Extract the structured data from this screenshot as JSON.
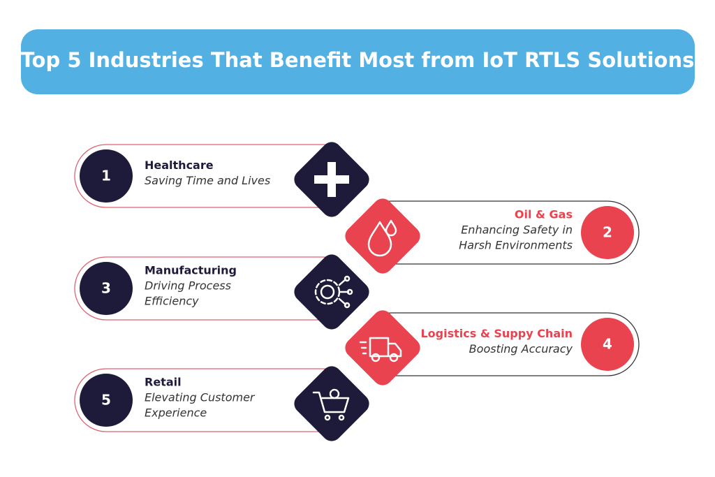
{
  "header": {
    "title": "Top 5 Industries That Benefit Most from IoT RTLS Solutions"
  },
  "items": [
    {
      "number": "1",
      "title": "Healthcare",
      "subtitle_lines": [
        "Saving Time and Lives"
      ]
    },
    {
      "number": "2",
      "title": "Oil & Gas",
      "subtitle_lines": [
        "Enhancing Safety in",
        "Harsh Environments"
      ]
    },
    {
      "number": "3",
      "title": "Manufacturing",
      "subtitle_lines": [
        "Driving Process",
        "Efficiency"
      ]
    },
    {
      "number": "4",
      "title": "Logistics & Suppy Chain",
      "subtitle_lines": [
        "Boosting Accuracy"
      ]
    },
    {
      "number": "5",
      "title": "Retail",
      "subtitle_lines": [
        "Elevating Customer",
        "Experience"
      ]
    }
  ]
}
